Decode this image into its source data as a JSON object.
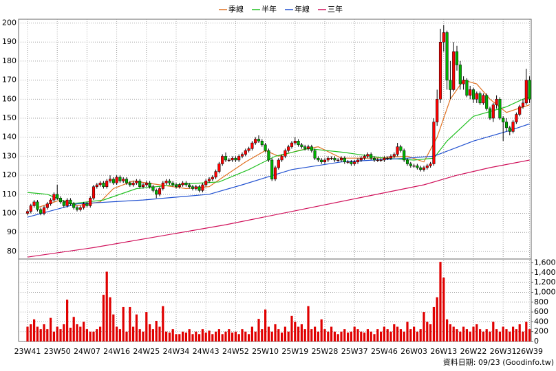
{
  "chart_data": [
    {
      "type": "candlestick",
      "open": [
        100,
        101,
        104,
        106,
        102,
        100,
        103,
        105,
        107,
        110,
        108,
        106,
        104,
        107,
        105,
        103,
        102,
        103,
        105,
        104,
        108,
        114,
        115,
        116,
        114,
        117,
        118,
        116,
        119,
        117,
        118,
        116,
        115,
        116,
        117,
        114,
        115,
        116,
        114,
        112,
        110,
        113,
        116,
        117,
        116,
        115,
        114,
        115,
        116,
        115,
        114,
        113,
        114,
        112,
        115,
        117,
        118,
        119,
        122,
        126,
        130,
        128,
        128,
        129,
        128,
        130,
        131,
        133,
        134,
        137,
        139,
        138,
        136,
        133,
        128,
        118,
        124,
        128,
        130,
        133,
        135,
        137,
        138,
        136,
        135,
        134,
        135,
        133,
        129,
        128,
        127,
        128,
        129,
        129,
        128,
        128,
        129,
        127,
        127,
        126,
        127,
        128,
        129,
        130,
        131,
        129,
        128,
        128,
        128,
        129,
        129,
        130,
        131,
        135,
        133,
        128,
        126,
        125,
        125,
        124,
        123,
        124,
        125,
        126,
        148,
        160,
        190,
        195,
        170,
        165,
        185,
        178,
        168,
        170,
        162,
        165,
        160,
        163,
        158,
        162,
        155,
        150,
        157,
        160,
        150,
        148,
        145,
        143,
        148,
        152,
        156,
        158,
        170
      ],
      "high": [
        102,
        105,
        107,
        107,
        103,
        104,
        106,
        108,
        111,
        115,
        109,
        107,
        108,
        108,
        106,
        104,
        104,
        106,
        106,
        109,
        115,
        116,
        117,
        117,
        118,
        120,
        119,
        120,
        120,
        119,
        119,
        117,
        117,
        118,
        118,
        116,
        117,
        117,
        115,
        113,
        114,
        117,
        118,
        118,
        117,
        116,
        116,
        117,
        117,
        116,
        115,
        115,
        115,
        116,
        118,
        119,
        120,
        123,
        127,
        131,
        132,
        129,
        130,
        130,
        131,
        132,
        134,
        135,
        138,
        140,
        141,
        139,
        137,
        134,
        129,
        125,
        129,
        131,
        134,
        136,
        138,
        140,
        139,
        137,
        136,
        136,
        136,
        134,
        130,
        129,
        129,
        130,
        130,
        130,
        129,
        130,
        130,
        128,
        128,
        128,
        129,
        130,
        131,
        132,
        132,
        130,
        129,
        129,
        130,
        130,
        131,
        132,
        137,
        136,
        134,
        129,
        127,
        126,
        126,
        125,
        125,
        126,
        127,
        150,
        165,
        197,
        199,
        196,
        180,
        190,
        188,
        180,
        172,
        171,
        167,
        166,
        164,
        164,
        163,
        163,
        156,
        158,
        162,
        161,
        151,
        150,
        146,
        149,
        153,
        157,
        160,
        176,
        172
      ],
      "low": [
        99,
        100,
        103,
        101,
        99,
        99,
        102,
        104,
        106,
        107,
        105,
        103,
        103,
        104,
        102,
        101,
        101,
        102,
        103,
        103,
        107,
        113,
        114,
        113,
        113,
        116,
        115,
        115,
        116,
        116,
        115,
        114,
        114,
        115,
        113,
        113,
        114,
        113,
        111,
        108,
        109,
        112,
        115,
        115,
        114,
        113,
        113,
        114,
        114,
        113,
        112,
        112,
        111,
        111,
        114,
        116,
        117,
        118,
        121,
        125,
        127,
        127,
        127,
        127,
        127,
        129,
        130,
        132,
        133,
        136,
        137,
        135,
        132,
        127,
        117,
        117,
        123,
        127,
        129,
        132,
        134,
        136,
        135,
        134,
        133,
        133,
        132,
        128,
        127,
        126,
        126,
        127,
        128,
        127,
        127,
        127,
        126,
        126,
        125,
        125,
        126,
        127,
        128,
        129,
        128,
        127,
        127,
        127,
        127,
        128,
        128,
        129,
        130,
        132,
        127,
        125,
        124,
        124,
        123,
        122,
        122,
        123,
        124,
        125,
        146,
        158,
        185,
        165,
        160,
        164,
        175,
        165,
        165,
        161,
        160,
        158,
        158,
        157,
        157,
        154,
        149,
        148,
        155,
        149,
        138,
        143,
        141,
        142,
        147,
        151,
        155,
        157,
        158
      ],
      "close": [
        101,
        104,
        106,
        102,
        100,
        103,
        105,
        107,
        110,
        108,
        106,
        104,
        107,
        105,
        103,
        102,
        103,
        105,
        104,
        108,
        114,
        115,
        116,
        114,
        117,
        118,
        116,
        119,
        117,
        118,
        116,
        115,
        116,
        117,
        114,
        115,
        116,
        114,
        112,
        110,
        113,
        116,
        117,
        116,
        115,
        114,
        115,
        116,
        115,
        114,
        113,
        114,
        112,
        115,
        117,
        118,
        119,
        122,
        126,
        130,
        128,
        128,
        129,
        128,
        130,
        131,
        133,
        134,
        137,
        139,
        138,
        136,
        133,
        128,
        118,
        124,
        128,
        130,
        133,
        135,
        137,
        138,
        136,
        135,
        134,
        135,
        133,
        129,
        128,
        127,
        128,
        129,
        129,
        128,
        128,
        129,
        127,
        127,
        126,
        127,
        128,
        129,
        130,
        131,
        129,
        128,
        128,
        128,
        129,
        129,
        130,
        131,
        135,
        133,
        128,
        126,
        125,
        125,
        124,
        123,
        124,
        125,
        126,
        148,
        160,
        190,
        195,
        170,
        165,
        185,
        178,
        168,
        170,
        162,
        165,
        160,
        163,
        158,
        162,
        155,
        150,
        157,
        160,
        150,
        148,
        145,
        143,
        148,
        152,
        156,
        158,
        170,
        160
      ],
      "up_color": "#ff0000",
      "down_color": "#00b000",
      "ylim": [
        76,
        202
      ],
      "yticks": [
        80,
        90,
        100,
        110,
        120,
        130,
        140,
        150,
        160,
        170,
        180,
        190,
        200
      ],
      "grid": true,
      "legend": "top",
      "series": [
        {
          "name": "季線",
          "color": "#e07020",
          "x": [
            3,
            10,
            15,
            22,
            26,
            32,
            40,
            48,
            55,
            60,
            66,
            72,
            76,
            82,
            88,
            95,
            105,
            115,
            120,
            124,
            128,
            132,
            136,
            140,
            145,
            152
          ],
          "values": [
            103,
            107,
            104,
            106,
            113,
            117,
            115,
            113,
            114,
            120,
            127,
            133,
            130,
            133,
            135,
            129,
            129,
            130,
            127,
            140,
            160,
            170,
            168,
            160,
            153,
            157
          ]
        },
        {
          "name": "半年",
          "color": "#20c020",
          "x": [
            0,
            6,
            13,
            23,
            33,
            48,
            58,
            67,
            75,
            85,
            96,
            108,
            117,
            123,
            127,
            135,
            145,
            150,
            152
          ],
          "values": [
            111,
            110,
            105,
            107,
            113,
            115.5,
            116.5,
            123,
            130,
            134,
            132,
            129,
            128,
            129,
            138,
            151,
            156,
            160,
            161
          ]
        },
        {
          "name": "年線",
          "color": "#2050d0",
          "x": [
            0,
            15,
            35,
            55,
            65,
            80,
            95,
            115,
            123,
            135,
            145,
            152
          ],
          "values": [
            98,
            105,
            107,
            110,
            115,
            123,
            127,
            129,
            130,
            138,
            143,
            147
          ]
        },
        {
          "name": "三年",
          "color": "#d0105a",
          "x": [
            0,
            20,
            40,
            60,
            80,
            100,
            120,
            130,
            140,
            152
          ],
          "values": [
            77,
            82,
            88,
            94,
            101,
            108,
            115,
            120,
            124,
            128
          ]
        }
      ]
    },
    {
      "type": "bar",
      "color": "#e00000",
      "categories": [
        "23W41",
        null,
        null,
        null,
        null,
        null,
        null,
        null,
        null,
        "23W50",
        null,
        null,
        null,
        null,
        null,
        null,
        null,
        null,
        "24W07",
        null,
        null,
        null,
        null,
        null,
        null,
        null,
        null,
        "24W16",
        null,
        null,
        null,
        null,
        null,
        null,
        null,
        null,
        "24W25",
        null,
        null,
        null,
        null,
        null,
        null,
        null,
        null,
        "24W34",
        null,
        null,
        null,
        null,
        null,
        null,
        null,
        null,
        "24W43",
        null,
        null,
        null,
        null,
        null,
        null,
        null,
        null,
        "24W52",
        null,
        null,
        null,
        null,
        null,
        null,
        null,
        null,
        "25W10",
        null,
        null,
        null,
        null,
        null,
        null,
        null,
        null,
        "25W19",
        null,
        null,
        null,
        null,
        null,
        null,
        null,
        null,
        "25W28",
        null,
        null,
        null,
        null,
        null,
        null,
        null,
        null,
        "25W37",
        null,
        null,
        null,
        null,
        null,
        null,
        null,
        null,
        "25W46",
        null,
        null,
        null,
        null,
        null,
        null,
        null,
        null,
        "26W03",
        null,
        null,
        null,
        null,
        null,
        null,
        null,
        null,
        "26W13",
        null,
        null,
        null,
        null,
        null,
        null,
        null,
        null,
        "26W22",
        null,
        null,
        null,
        null,
        null,
        null,
        null,
        null,
        "26W31",
        null,
        null,
        null,
        null,
        null,
        null,
        null,
        "26W39"
      ],
      "values": [
        300,
        350,
        450,
        300,
        250,
        350,
        250,
        480,
        200,
        300,
        250,
        350,
        850,
        280,
        500,
        350,
        300,
        400,
        250,
        200,
        200,
        250,
        300,
        950,
        1420,
        900,
        550,
        300,
        250,
        700,
        200,
        700,
        300,
        550,
        250,
        200,
        600,
        350,
        250,
        420,
        300,
        720,
        200,
        180,
        250,
        150,
        150,
        200,
        180,
        250,
        150,
        200,
        150,
        250,
        180,
        220,
        150,
        200,
        250,
        150,
        200,
        250,
        180,
        200,
        150,
        250,
        200,
        150,
        300,
        200,
        460,
        250,
        650,
        300,
        200,
        350,
        250,
        180,
        300,
        200,
        520,
        400,
        300,
        350,
        250,
        720,
        250,
        300,
        200,
        450,
        250,
        200,
        300,
        200,
        150,
        200,
        250,
        180,
        200,
        300,
        250,
        200,
        180,
        250,
        200,
        150,
        250,
        200,
        300,
        250,
        200,
        350,
        300,
        250,
        200,
        400,
        250,
        300,
        200,
        250,
        600,
        400,
        350,
        700,
        900,
        1620,
        1300,
        450,
        350,
        300,
        250,
        200,
        300,
        250,
        200,
        300,
        350,
        250,
        200,
        250,
        200,
        400,
        250,
        200,
        300,
        250,
        200,
        300,
        250,
        350,
        200,
        400,
        250
      ],
      "ylim": [
        0,
        1650
      ],
      "yticks": [
        0,
        200,
        400,
        600,
        800,
        {
          "value": 1000,
          "label": "1,000"
        },
        {
          "value": 1200,
          "label": "1,200"
        },
        {
          "value": 1400,
          "label": "1,400"
        },
        {
          "value": 1600,
          "label": "1,600"
        }
      ],
      "grid": true,
      "annotation": "資料日期: 09/23  (Goodinfo.tw)"
    }
  ]
}
